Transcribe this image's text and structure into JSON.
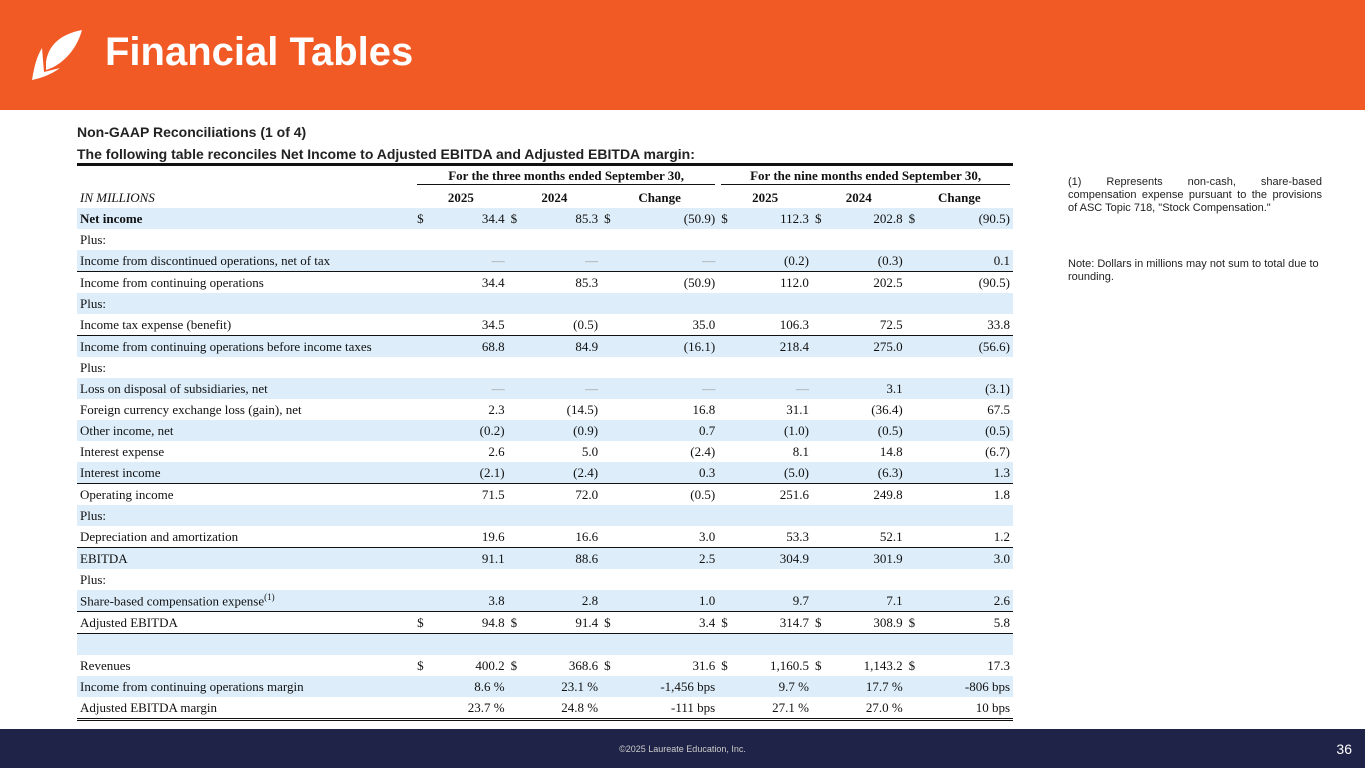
{
  "header": {
    "title": "Financial Tables"
  },
  "subtitle": "Non-GAAP Reconciliations (1 of 4)",
  "description": "The following table reconciles Net Income to Adjusted EBITDA and Adjusted EBITDA margin:",
  "table": {
    "group_headers": [
      "For the three months ended September 30,",
      "For the nine months ended September 30,"
    ],
    "unit_label": "IN MILLIONS",
    "columns": [
      "2025",
      "2024",
      "Change",
      "2025",
      "2024",
      "Change"
    ],
    "rows": [
      {
        "label": "Net income",
        "dollar": true,
        "bold": true,
        "values": [
          "34.4",
          "85.3",
          "(50.9)",
          "112.3",
          "202.8",
          "(90.5)"
        ]
      },
      {
        "label": "Plus:",
        "values": []
      },
      {
        "label": "Income from discontinued operations, net of tax",
        "border": true,
        "values": [
          "—",
          "—",
          "—",
          "(0.2)",
          "(0.3)",
          "0.1"
        ]
      },
      {
        "label": "Income from continuing operations",
        "values": [
          "34.4",
          "85.3",
          "(50.9)",
          "112.0",
          "202.5",
          "(90.5)"
        ]
      },
      {
        "label": "Plus:",
        "values": []
      },
      {
        "label": "Income tax expense (benefit)",
        "border": true,
        "values": [
          "34.5",
          "(0.5)",
          "35.0",
          "106.3",
          "72.5",
          "33.8"
        ]
      },
      {
        "label": "Income from continuing operations before income taxes",
        "values": [
          "68.8",
          "84.9",
          "(16.1)",
          "218.4",
          "275.0",
          "(56.6)"
        ]
      },
      {
        "label": "Plus:",
        "values": []
      },
      {
        "label": "Loss on disposal of subsidiaries, net",
        "values": [
          "—",
          "—",
          "—",
          "—",
          "3.1",
          "(3.1)"
        ]
      },
      {
        "label": "Foreign currency exchange loss (gain), net",
        "values": [
          "2.3",
          "(14.5)",
          "16.8",
          "31.1",
          "(36.4)",
          "67.5"
        ]
      },
      {
        "label": "Other income, net",
        "values": [
          "(0.2)",
          "(0.9)",
          "0.7",
          "(1.0)",
          "(0.5)",
          "(0.5)"
        ]
      },
      {
        "label": "Interest expense",
        "values": [
          "2.6",
          "5.0",
          "(2.4)",
          "8.1",
          "14.8",
          "(6.7)"
        ]
      },
      {
        "label": "Interest income",
        "border": true,
        "values": [
          "(2.1)",
          "(2.4)",
          "0.3",
          "(5.0)",
          "(6.3)",
          "1.3"
        ]
      },
      {
        "label": "Operating income",
        "values": [
          "71.5",
          "72.0",
          "(0.5)",
          "251.6",
          "249.8",
          "1.8"
        ]
      },
      {
        "label": "Plus:",
        "values": []
      },
      {
        "label": "Depreciation and amortization",
        "border": true,
        "values": [
          "19.6",
          "16.6",
          "3.0",
          "53.3",
          "52.1",
          "1.2"
        ]
      },
      {
        "label": "EBITDA",
        "values": [
          "91.1",
          "88.6",
          "2.5",
          "304.9",
          "301.9",
          "3.0"
        ]
      },
      {
        "label": "Plus:",
        "values": []
      },
      {
        "label": "Share-based compensation expense",
        "sup": "(1)",
        "border": true,
        "values": [
          "3.8",
          "2.8",
          "1.0",
          "9.7",
          "7.1",
          "2.6"
        ]
      },
      {
        "label": "Adjusted EBITDA",
        "dollar": true,
        "border": true,
        "values": [
          "94.8",
          "91.4",
          "3.4",
          "314.7",
          "308.9",
          "5.8"
        ]
      },
      {
        "label": "",
        "values": []
      },
      {
        "label": "Revenues",
        "dollar": true,
        "values": [
          "400.2",
          "368.6",
          "31.6",
          "1,160.5",
          "1,143.2",
          "17.3"
        ]
      },
      {
        "label": "Income from continuing operations margin",
        "values": [
          "8.6 %",
          "23.1 %",
          "-1,456 bps",
          "9.7 %",
          "17.7 %",
          "-806 bps"
        ]
      },
      {
        "label": "Adjusted EBITDA margin",
        "double": true,
        "values": [
          "23.7 %",
          "24.8 %",
          "-111 bps",
          "27.1 %",
          "27.0 %",
          "10 bps"
        ]
      }
    ]
  },
  "notes": {
    "footnote": "(1) Represents non-cash, share-based compensation expense pursuant to the provisions of ASC Topic 718, \"Stock Compensation.\"",
    "rounding": "Note:  Dollars in millions may not sum to total due to rounding."
  },
  "footer": {
    "copyright": "©2025 Laureate Education, Inc.",
    "page": "36"
  },
  "colors": {
    "orange": "#f15a24",
    "navy": "#1f2347",
    "row_shade": "#ddeefa"
  }
}
